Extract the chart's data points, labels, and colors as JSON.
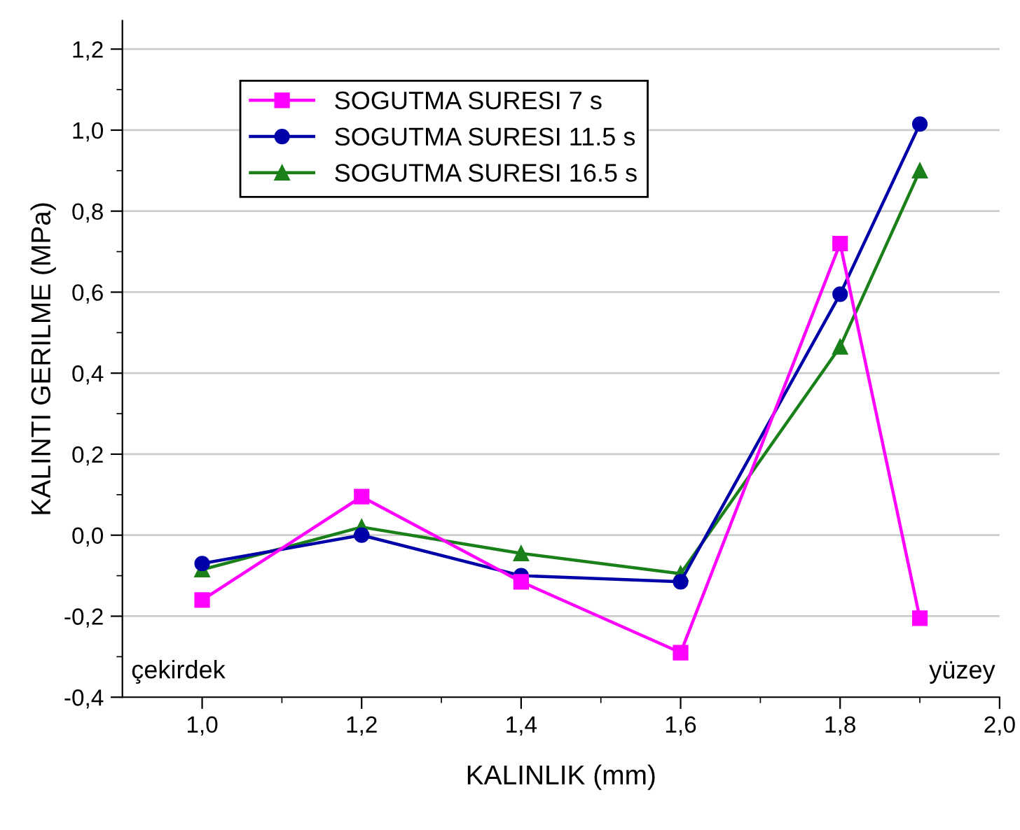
{
  "chart_data": {
    "type": "line",
    "xlabel": "KALINLIK (mm)",
    "ylabel": "KALINTI GERILME (MPa)",
    "x": [
      1.0,
      1.2,
      1.4,
      1.6,
      1.8,
      1.9
    ],
    "series": [
      {
        "name": "SOGUTMA SURESI 7 s",
        "color": "#ff00ff",
        "marker": "square",
        "values": [
          -0.16,
          0.095,
          -0.115,
          -0.29,
          0.72,
          -0.205
        ]
      },
      {
        "name": "SOGUTMA SURESI 11.5 s",
        "color": "#0000a8",
        "marker": "circle",
        "values": [
          -0.07,
          0.0,
          -0.1,
          -0.115,
          0.595,
          1.015
        ]
      },
      {
        "name": "SOGUTMA SURESI 16.5 s",
        "color": "#1a801a",
        "marker": "triangle",
        "values": [
          -0.085,
          0.02,
          -0.045,
          -0.095,
          0.465,
          0.9
        ]
      }
    ],
    "xlim": [
      0.9,
      2.0
    ],
    "xticks": [
      {
        "value": 1.0,
        "label": "1,0"
      },
      {
        "value": 1.2,
        "label": "1,2"
      },
      {
        "value": 1.4,
        "label": "1,4"
      },
      {
        "value": 1.6,
        "label": "1,6"
      },
      {
        "value": 1.8,
        "label": "1,8"
      },
      {
        "value": 2.0,
        "label": "2,0"
      }
    ],
    "ylim": [
      -0.4,
      1.27
    ],
    "yticks": [
      {
        "value": -0.4,
        "label": "-0,4"
      },
      {
        "value": -0.2,
        "label": "-0,2"
      },
      {
        "value": 0.0,
        "label": "0,0"
      },
      {
        "value": 0.2,
        "label": "0,2"
      },
      {
        "value": 0.4,
        "label": "0,4"
      },
      {
        "value": 0.6,
        "label": "0,6"
      },
      {
        "value": 0.8,
        "label": "0,8"
      },
      {
        "value": 1.0,
        "label": "1,0"
      },
      {
        "value": 1.2,
        "label": "1,2"
      }
    ],
    "annotations": [
      "çekirdek",
      "yüzey"
    ],
    "grid": "y",
    "legend": "top left",
    "line_style": "solid"
  }
}
